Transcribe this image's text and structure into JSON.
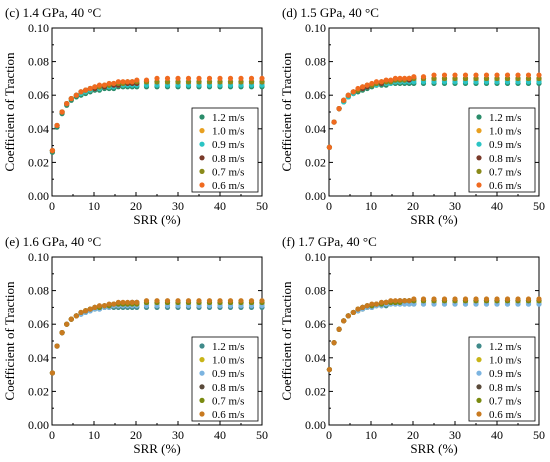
{
  "figure": {
    "x_values": [
      0.1,
      1.2,
      2.4,
      3.5,
      4.6,
      5.8,
      6.9,
      8.0,
      9.1,
      10.2,
      11.3,
      12.5,
      13.6,
      14.7,
      15.8,
      16.9,
      18.0,
      19.1,
      20.2,
      22.5,
      25.0,
      27.5,
      30.0,
      32.5,
      35.0,
      37.5,
      40.0,
      42.5,
      45.0,
      47.5,
      50.0
    ],
    "legend_labels": [
      "1.2 m/s",
      "1.0 m/s",
      "0.9 m/s",
      "0.8 m/s",
      "0.7 m/s",
      "0.6 m/s"
    ]
  },
  "chart_data": [
    {
      "type": "scatter",
      "title": "(c) 1.4 GPa, 40 °C",
      "xlabel": "SRR (%)",
      "ylabel": "Coefficient of Traction",
      "xlim": [
        0,
        50
      ],
      "ylim": [
        0,
        0.1
      ],
      "xticks": [
        "0",
        "10",
        "20",
        "30",
        "40",
        "50"
      ],
      "yticks": [
        "0.00",
        "0.02",
        "0.04",
        "0.06",
        "0.08",
        "0.10"
      ],
      "legend_position": "bottom-right",
      "series": [
        {
          "name": "1.2 m/s",
          "color": "#2a8c6a",
          "values": [
            0.026,
            0.041,
            0.049,
            0.054,
            0.057,
            0.059,
            0.06,
            0.061,
            0.062,
            0.063,
            0.063,
            0.064,
            0.064,
            0.064,
            0.065,
            0.065,
            0.065,
            0.065,
            0.065,
            0.065,
            0.065,
            0.065,
            0.065,
            0.065,
            0.065,
            0.065,
            0.065,
            0.065,
            0.065,
            0.065,
            0.065
          ]
        },
        {
          "name": "1.0 m/s",
          "color": "#e8a020",
          "values": [
            0.027,
            0.042,
            0.05,
            0.055,
            0.058,
            0.06,
            0.061,
            0.062,
            0.063,
            0.064,
            0.064,
            0.065,
            0.065,
            0.066,
            0.066,
            0.066,
            0.067,
            0.067,
            0.067,
            0.067,
            0.067,
            0.067,
            0.067,
            0.067,
            0.067,
            0.067,
            0.067,
            0.067,
            0.067,
            0.067,
            0.067
          ]
        },
        {
          "name": "0.9 m/s",
          "color": "#2bc4c4",
          "values": [
            0.027,
            0.042,
            0.05,
            0.055,
            0.058,
            0.06,
            0.061,
            0.062,
            0.063,
            0.064,
            0.064,
            0.065,
            0.065,
            0.065,
            0.066,
            0.066,
            0.066,
            0.066,
            0.066,
            0.066,
            0.066,
            0.066,
            0.066,
            0.066,
            0.066,
            0.066,
            0.066,
            0.066,
            0.066,
            0.066,
            0.066
          ]
        },
        {
          "name": "0.8 m/s",
          "color": "#7a3a2a",
          "values": [
            0.027,
            0.042,
            0.05,
            0.055,
            0.058,
            0.06,
            0.062,
            0.063,
            0.064,
            0.064,
            0.065,
            0.065,
            0.066,
            0.066,
            0.066,
            0.067,
            0.067,
            0.067,
            0.067,
            0.068,
            0.068,
            0.068,
            0.068,
            0.068,
            0.068,
            0.068,
            0.068,
            0.068,
            0.068,
            0.068,
            0.068
          ]
        },
        {
          "name": "0.7 m/s",
          "color": "#8a8a1a",
          "values": [
            0.027,
            0.042,
            0.05,
            0.055,
            0.058,
            0.06,
            0.062,
            0.063,
            0.064,
            0.065,
            0.065,
            0.066,
            0.066,
            0.067,
            0.067,
            0.067,
            0.068,
            0.068,
            0.068,
            0.068,
            0.068,
            0.068,
            0.068,
            0.068,
            0.068,
            0.068,
            0.068,
            0.068,
            0.068,
            0.068,
            0.068
          ]
        },
        {
          "name": "0.6 m/s",
          "color": "#f06a20",
          "values": [
            0.027,
            0.042,
            0.05,
            0.055,
            0.058,
            0.06,
            0.062,
            0.063,
            0.064,
            0.065,
            0.066,
            0.066,
            0.067,
            0.067,
            0.068,
            0.068,
            0.068,
            0.068,
            0.069,
            0.069,
            0.07,
            0.07,
            0.07,
            0.07,
            0.07,
            0.07,
            0.07,
            0.07,
            0.07,
            0.07,
            0.07
          ]
        }
      ]
    },
    {
      "type": "scatter",
      "title": "(d) 1.5 GPa, 40 °C",
      "xlabel": "SRR (%)",
      "ylabel": "Coefficient of Traction",
      "xlim": [
        0,
        50
      ],
      "ylim": [
        0,
        0.1
      ],
      "xticks": [
        "0",
        "10",
        "20",
        "30",
        "40",
        "50"
      ],
      "yticks": [
        "0.00",
        "0.02",
        "0.04",
        "0.06",
        "0.08",
        "0.10"
      ],
      "legend_position": "bottom-right",
      "series": [
        {
          "name": "1.2 m/s",
          "color": "#2a8c6a",
          "values": [
            0.029,
            0.044,
            0.052,
            0.056,
            0.059,
            0.061,
            0.062,
            0.063,
            0.064,
            0.065,
            0.066,
            0.066,
            0.066,
            0.067,
            0.067,
            0.067,
            0.067,
            0.067,
            0.067,
            0.067,
            0.067,
            0.067,
            0.067,
            0.067,
            0.067,
            0.067,
            0.067,
            0.067,
            0.067,
            0.067,
            0.067
          ]
        },
        {
          "name": "1.0 m/s",
          "color": "#e8a020",
          "values": [
            0.029,
            0.044,
            0.052,
            0.056,
            0.059,
            0.061,
            0.063,
            0.064,
            0.065,
            0.066,
            0.066,
            0.067,
            0.067,
            0.068,
            0.068,
            0.068,
            0.069,
            0.069,
            0.069,
            0.069,
            0.069,
            0.069,
            0.069,
            0.069,
            0.069,
            0.069,
            0.069,
            0.069,
            0.069,
            0.069,
            0.069
          ]
        },
        {
          "name": "0.9 m/s",
          "color": "#2bc4c4",
          "values": [
            0.029,
            0.044,
            0.052,
            0.056,
            0.059,
            0.061,
            0.063,
            0.064,
            0.065,
            0.066,
            0.066,
            0.067,
            0.067,
            0.067,
            0.068,
            0.068,
            0.068,
            0.068,
            0.068,
            0.068,
            0.068,
            0.068,
            0.068,
            0.068,
            0.068,
            0.068,
            0.068,
            0.068,
            0.068,
            0.068,
            0.068
          ]
        },
        {
          "name": "0.8 m/s",
          "color": "#7a3a2a",
          "values": [
            0.029,
            0.044,
            0.052,
            0.057,
            0.06,
            0.062,
            0.063,
            0.064,
            0.065,
            0.066,
            0.067,
            0.067,
            0.068,
            0.068,
            0.069,
            0.069,
            0.069,
            0.069,
            0.07,
            0.07,
            0.07,
            0.07,
            0.07,
            0.07,
            0.07,
            0.07,
            0.07,
            0.07,
            0.07,
            0.07,
            0.07
          ]
        },
        {
          "name": "0.7 m/s",
          "color": "#8a8a1a",
          "values": [
            0.029,
            0.044,
            0.052,
            0.057,
            0.06,
            0.062,
            0.063,
            0.065,
            0.066,
            0.066,
            0.067,
            0.068,
            0.068,
            0.068,
            0.069,
            0.069,
            0.069,
            0.07,
            0.07,
            0.07,
            0.07,
            0.07,
            0.07,
            0.07,
            0.07,
            0.07,
            0.07,
            0.07,
            0.07,
            0.07,
            0.07
          ]
        },
        {
          "name": "0.6 m/s",
          "color": "#f06a20",
          "values": [
            0.029,
            0.044,
            0.052,
            0.057,
            0.06,
            0.062,
            0.064,
            0.065,
            0.066,
            0.067,
            0.068,
            0.068,
            0.069,
            0.069,
            0.07,
            0.07,
            0.07,
            0.07,
            0.071,
            0.071,
            0.072,
            0.072,
            0.072,
            0.072,
            0.072,
            0.072,
            0.072,
            0.072,
            0.072,
            0.072,
            0.072
          ]
        }
      ]
    },
    {
      "type": "scatter",
      "title": "(e) 1.6 GPa, 40 °C",
      "xlabel": "SRR (%)",
      "ylabel": "Coefficient of Traction",
      "xlim": [
        0,
        50
      ],
      "ylim": [
        0,
        0.1
      ],
      "xticks": [
        "0",
        "10",
        "20",
        "30",
        "40",
        "50"
      ],
      "yticks": [
        "0.00",
        "0.02",
        "0.04",
        "0.06",
        "0.08",
        "0.10"
      ],
      "legend_position": "bottom-right",
      "series": [
        {
          "name": "1.2 m/s",
          "color": "#3f8a8a",
          "values": [
            0.031,
            0.047,
            0.055,
            0.06,
            0.063,
            0.065,
            0.066,
            0.067,
            0.068,
            0.069,
            0.069,
            0.07,
            0.07,
            0.07,
            0.07,
            0.07,
            0.07,
            0.07,
            0.07,
            0.07,
            0.07,
            0.07,
            0.07,
            0.07,
            0.07,
            0.07,
            0.07,
            0.07,
            0.07,
            0.07,
            0.07
          ]
        },
        {
          "name": "1.0 m/s",
          "color": "#c8b418",
          "values": [
            0.031,
            0.047,
            0.055,
            0.06,
            0.063,
            0.065,
            0.067,
            0.068,
            0.069,
            0.069,
            0.07,
            0.07,
            0.071,
            0.071,
            0.071,
            0.072,
            0.072,
            0.072,
            0.072,
            0.072,
            0.072,
            0.072,
            0.072,
            0.072,
            0.072,
            0.072,
            0.072,
            0.072,
            0.072,
            0.072,
            0.072
          ]
        },
        {
          "name": "0.9 m/s",
          "color": "#7cb4e0",
          "values": [
            0.031,
            0.047,
            0.055,
            0.06,
            0.063,
            0.065,
            0.066,
            0.067,
            0.068,
            0.069,
            0.069,
            0.07,
            0.07,
            0.071,
            0.071,
            0.071,
            0.071,
            0.071,
            0.071,
            0.071,
            0.071,
            0.071,
            0.071,
            0.071,
            0.071,
            0.071,
            0.071,
            0.071,
            0.071,
            0.071,
            0.071
          ]
        },
        {
          "name": "0.8 m/s",
          "color": "#5a4a3a",
          "values": [
            0.031,
            0.047,
            0.055,
            0.06,
            0.063,
            0.065,
            0.067,
            0.068,
            0.069,
            0.07,
            0.07,
            0.071,
            0.071,
            0.072,
            0.072,
            0.072,
            0.072,
            0.073,
            0.073,
            0.073,
            0.073,
            0.073,
            0.073,
            0.073,
            0.073,
            0.073,
            0.073,
            0.073,
            0.073,
            0.073,
            0.073
          ]
        },
        {
          "name": "0.7 m/s",
          "color": "#7a8a10",
          "values": [
            0.031,
            0.047,
            0.055,
            0.06,
            0.063,
            0.065,
            0.067,
            0.068,
            0.069,
            0.07,
            0.07,
            0.071,
            0.071,
            0.072,
            0.072,
            0.072,
            0.072,
            0.072,
            0.072,
            0.073,
            0.073,
            0.073,
            0.073,
            0.073,
            0.073,
            0.073,
            0.073,
            0.073,
            0.073,
            0.073,
            0.073
          ]
        },
        {
          "name": "0.6 m/s",
          "color": "#c87a20",
          "values": [
            0.031,
            0.047,
            0.055,
            0.06,
            0.063,
            0.065,
            0.067,
            0.068,
            0.069,
            0.07,
            0.071,
            0.071,
            0.072,
            0.072,
            0.073,
            0.073,
            0.073,
            0.073,
            0.073,
            0.074,
            0.074,
            0.074,
            0.074,
            0.074,
            0.074,
            0.074,
            0.074,
            0.074,
            0.074,
            0.074,
            0.074
          ]
        }
      ]
    },
    {
      "type": "scatter",
      "title": "(f) 1.7 GPa, 40 °C",
      "xlabel": "SRR (%)",
      "ylabel": "Coefficient of Traction",
      "xlim": [
        0,
        50
      ],
      "ylim": [
        0,
        0.1
      ],
      "xticks": [
        "0",
        "10",
        "20",
        "30",
        "40",
        "50"
      ],
      "yticks": [
        "0.00",
        "0.02",
        "0.04",
        "0.06",
        "0.08",
        "0.10"
      ],
      "legend_position": "bottom-right",
      "series": [
        {
          "name": "1.2 m/s",
          "color": "#3f8a8a",
          "values": [
            0.033,
            0.049,
            0.057,
            0.062,
            0.065,
            0.067,
            0.068,
            0.069,
            0.07,
            0.07,
            0.071,
            0.071,
            0.071,
            0.072,
            0.072,
            0.072,
            0.072,
            0.072,
            0.072,
            0.072,
            0.072,
            0.072,
            0.072,
            0.072,
            0.072,
            0.072,
            0.072,
            0.072,
            0.072,
            0.072,
            0.072
          ]
        },
        {
          "name": "1.0 m/s",
          "color": "#c8b418",
          "values": [
            0.033,
            0.049,
            0.057,
            0.062,
            0.065,
            0.067,
            0.068,
            0.069,
            0.07,
            0.071,
            0.071,
            0.072,
            0.072,
            0.073,
            0.073,
            0.073,
            0.073,
            0.073,
            0.073,
            0.073,
            0.073,
            0.073,
            0.073,
            0.073,
            0.073,
            0.073,
            0.073,
            0.073,
            0.073,
            0.073,
            0.073
          ]
        },
        {
          "name": "0.9 m/s",
          "color": "#7cb4e0",
          "values": [
            0.033,
            0.049,
            0.057,
            0.062,
            0.065,
            0.067,
            0.068,
            0.069,
            0.07,
            0.07,
            0.071,
            0.071,
            0.072,
            0.072,
            0.072,
            0.072,
            0.072,
            0.072,
            0.072,
            0.072,
            0.072,
            0.072,
            0.072,
            0.072,
            0.072,
            0.072,
            0.072,
            0.072,
            0.072,
            0.072,
            0.072
          ]
        },
        {
          "name": "0.8 m/s",
          "color": "#5a4a3a",
          "values": [
            0.033,
            0.049,
            0.057,
            0.062,
            0.065,
            0.067,
            0.069,
            0.07,
            0.071,
            0.071,
            0.072,
            0.072,
            0.073,
            0.073,
            0.073,
            0.074,
            0.074,
            0.074,
            0.074,
            0.074,
            0.074,
            0.074,
            0.074,
            0.074,
            0.074,
            0.074,
            0.074,
            0.074,
            0.074,
            0.074,
            0.074
          ]
        },
        {
          "name": "0.7 m/s",
          "color": "#7a8a10",
          "values": [
            0.033,
            0.049,
            0.057,
            0.062,
            0.065,
            0.067,
            0.069,
            0.07,
            0.071,
            0.071,
            0.072,
            0.072,
            0.073,
            0.073,
            0.073,
            0.073,
            0.074,
            0.074,
            0.074,
            0.074,
            0.074,
            0.074,
            0.074,
            0.074,
            0.074,
            0.074,
            0.074,
            0.074,
            0.074,
            0.074,
            0.074
          ]
        },
        {
          "name": "0.6 m/s",
          "color": "#c87a20",
          "values": [
            0.033,
            0.049,
            0.057,
            0.062,
            0.065,
            0.067,
            0.069,
            0.07,
            0.071,
            0.072,
            0.072,
            0.073,
            0.073,
            0.074,
            0.074,
            0.074,
            0.074,
            0.074,
            0.075,
            0.075,
            0.075,
            0.075,
            0.075,
            0.075,
            0.075,
            0.075,
            0.075,
            0.075,
            0.075,
            0.075,
            0.075
          ]
        }
      ]
    }
  ]
}
